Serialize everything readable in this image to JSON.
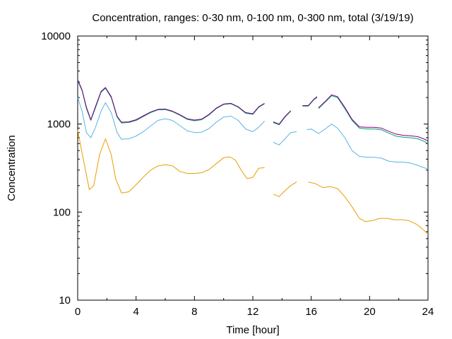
{
  "chart_data": {
    "type": "line",
    "title": "Concentration, ranges: 0-30 nm, 0-100 nm, 0-300 nm, total (3/19/19)",
    "xlabel": "Time [hour]",
    "ylabel": "Concentration",
    "xlim": [
      0,
      24
    ],
    "ylim": [
      10,
      10000
    ],
    "yscale": "log",
    "grid": false,
    "legend": "none",
    "x_ticks": [
      0,
      4,
      8,
      12,
      16,
      20,
      24
    ],
    "x_tick_labels": [
      "0",
      "4",
      "8",
      "12",
      "16",
      "20",
      "24"
    ],
    "y_ticks": [
      10,
      100,
      1000,
      10000
    ],
    "y_tick_labels": [
      "10",
      "100",
      "1000",
      "10000"
    ],
    "series": [
      {
        "color": "#e69f00",
        "segments": [
          [
            [
              0,
              850
            ],
            [
              0.5,
              320
            ],
            [
              0.8,
              180
            ],
            [
              1.1,
              200
            ],
            [
              1.5,
              450
            ],
            [
              1.9,
              680
            ],
            [
              2.3,
              450
            ],
            [
              2.6,
              240
            ],
            [
              3.0,
              165
            ],
            [
              3.5,
              170
            ],
            [
              4.0,
              205
            ],
            [
              4.5,
              250
            ],
            [
              5.0,
              300
            ],
            [
              5.5,
              335
            ],
            [
              6.0,
              345
            ],
            [
              6.5,
              335
            ],
            [
              7.0,
              290
            ],
            [
              7.5,
              275
            ],
            [
              8.0,
              275
            ],
            [
              8.5,
              280
            ],
            [
              9.0,
              305
            ],
            [
              9.5,
              355
            ],
            [
              10.0,
              415
            ],
            [
              10.4,
              425
            ],
            [
              10.8,
              390
            ],
            [
              11.2,
              300
            ],
            [
              11.6,
              240
            ],
            [
              12.0,
              248
            ],
            [
              12.4,
              315
            ],
            [
              12.8,
              320
            ]
          ],
          [
            [
              13.4,
              160
            ],
            [
              13.8,
              150
            ],
            [
              14.2,
              175
            ],
            [
              14.6,
              200
            ],
            [
              15.0,
              220
            ]
          ],
          [
            [
              15.8,
              220
            ],
            [
              16.3,
              210
            ],
            [
              16.8,
              190
            ],
            [
              17.3,
              195
            ],
            [
              17.8,
              185
            ],
            [
              18.3,
              150
            ],
            [
              18.8,
              115
            ],
            [
              19.3,
              85
            ],
            [
              19.7,
              78
            ],
            [
              20.2,
              80
            ],
            [
              20.7,
              85
            ],
            [
              21.2,
              85
            ],
            [
              21.7,
              82
            ],
            [
              22.2,
              82
            ],
            [
              22.7,
              80
            ],
            [
              23.2,
              73
            ],
            [
              23.6,
              65
            ],
            [
              24.0,
              56
            ]
          ]
        ]
      },
      {
        "color": "#56b4e9",
        "segments": [
          [
            [
              0,
              2000
            ],
            [
              0.3,
              1400
            ],
            [
              0.6,
              800
            ],
            [
              0.9,
              700
            ],
            [
              1.2,
              900
            ],
            [
              1.6,
              1400
            ],
            [
              1.9,
              1750
            ],
            [
              2.3,
              1350
            ],
            [
              2.7,
              800
            ],
            [
              3.0,
              670
            ],
            [
              3.5,
              680
            ],
            [
              4.0,
              730
            ],
            [
              4.5,
              820
            ],
            [
              5.0,
              950
            ],
            [
              5.5,
              1100
            ],
            [
              6.0,
              1150
            ],
            [
              6.5,
              1100
            ],
            [
              7.0,
              960
            ],
            [
              7.5,
              840
            ],
            [
              8.0,
              800
            ],
            [
              8.5,
              810
            ],
            [
              9.0,
              890
            ],
            [
              9.5,
              1050
            ],
            [
              10.0,
              1200
            ],
            [
              10.5,
              1230
            ],
            [
              11.0,
              1100
            ],
            [
              11.5,
              880
            ],
            [
              12.0,
              820
            ],
            [
              12.4,
              920
            ],
            [
              12.8,
              1080
            ]
          ],
          [
            [
              13.4,
              620
            ],
            [
              13.8,
              580
            ],
            [
              14.2,
              680
            ],
            [
              14.6,
              800
            ],
            [
              15.0,
              820
            ]
          ],
          [
            [
              15.7,
              860
            ],
            [
              16.0,
              880
            ],
            [
              16.5,
              780
            ],
            [
              17.0,
              890
            ],
            [
              17.4,
              1000
            ],
            [
              17.8,
              900
            ],
            [
              18.3,
              700
            ],
            [
              18.8,
              500
            ],
            [
              19.3,
              430
            ],
            [
              19.8,
              420
            ],
            [
              20.3,
              420
            ],
            [
              20.8,
              410
            ],
            [
              21.3,
              380
            ],
            [
              21.8,
              370
            ],
            [
              22.3,
              370
            ],
            [
              22.8,
              360
            ],
            [
              23.3,
              340
            ],
            [
              23.7,
              320
            ],
            [
              24.0,
              310
            ]
          ]
        ]
      },
      {
        "color": "#009e73",
        "segments": [
          [
            [
              0,
              3100
            ],
            [
              0.3,
              2400
            ],
            [
              0.6,
              1500
            ],
            [
              0.9,
              1100
            ],
            [
              1.2,
              1500
            ],
            [
              1.6,
              2300
            ],
            [
              1.9,
              2550
            ],
            [
              2.3,
              2000
            ],
            [
              2.7,
              1200
            ],
            [
              3.0,
              1030
            ],
            [
              3.5,
              1040
            ],
            [
              4.0,
              1100
            ],
            [
              4.5,
              1220
            ],
            [
              5.0,
              1350
            ],
            [
              5.5,
              1450
            ],
            [
              6.0,
              1460
            ],
            [
              6.5,
              1380
            ],
            [
              7.0,
              1260
            ],
            [
              7.5,
              1130
            ],
            [
              8.0,
              1090
            ],
            [
              8.5,
              1120
            ],
            [
              9.0,
              1270
            ],
            [
              9.5,
              1500
            ],
            [
              10.0,
              1670
            ],
            [
              10.5,
              1700
            ],
            [
              11.0,
              1550
            ],
            [
              11.5,
              1330
            ],
            [
              12.0,
              1290
            ],
            [
              12.4,
              1550
            ],
            [
              12.8,
              1700
            ]
          ],
          [
            [
              13.4,
              1040
            ],
            [
              13.8,
              980
            ],
            [
              14.2,
              1200
            ],
            [
              14.6,
              1400
            ]
          ],
          [
            [
              15.4,
              1600
            ],
            [
              15.8,
              1600
            ],
            [
              16.2,
              1900
            ],
            [
              16.4,
              2000
            ]
          ],
          [
            [
              16.5,
              1500
            ],
            [
              17.0,
              1800
            ],
            [
              17.4,
              2100
            ],
            [
              17.8,
              2000
            ],
            [
              18.3,
              1500
            ],
            [
              18.8,
              1100
            ],
            [
              19.3,
              900
            ],
            [
              19.8,
              880
            ],
            [
              20.3,
              880
            ],
            [
              20.8,
              860
            ],
            [
              21.3,
              790
            ],
            [
              21.8,
              730
            ],
            [
              22.3,
              710
            ],
            [
              22.8,
              700
            ],
            [
              23.3,
              680
            ],
            [
              23.7,
              640
            ],
            [
              24.0,
              600
            ]
          ]
        ]
      },
      {
        "color": "#800080",
        "segments": [
          [
            [
              0,
              3200
            ],
            [
              0.3,
              2450
            ],
            [
              0.6,
              1550
            ],
            [
              0.9,
              1120
            ],
            [
              1.2,
              1550
            ],
            [
              1.6,
              2350
            ],
            [
              1.9,
              2600
            ],
            [
              2.3,
              2050
            ],
            [
              2.7,
              1230
            ],
            [
              3.0,
              1050
            ],
            [
              3.5,
              1060
            ],
            [
              4.0,
              1120
            ],
            [
              4.5,
              1240
            ],
            [
              5.0,
              1370
            ],
            [
              5.5,
              1470
            ],
            [
              6.0,
              1480
            ],
            [
              6.5,
              1400
            ],
            [
              7.0,
              1280
            ],
            [
              7.5,
              1150
            ],
            [
              8.0,
              1110
            ],
            [
              8.5,
              1140
            ],
            [
              9.0,
              1290
            ],
            [
              9.5,
              1520
            ],
            [
              10.0,
              1690
            ],
            [
              10.5,
              1720
            ],
            [
              11.0,
              1570
            ],
            [
              11.5,
              1350
            ],
            [
              12.0,
              1310
            ],
            [
              12.4,
              1570
            ],
            [
              12.8,
              1720
            ]
          ],
          [
            [
              13.4,
              1060
            ],
            [
              13.8,
              1000
            ],
            [
              14.2,
              1220
            ],
            [
              14.6,
              1420
            ]
          ],
          [
            [
              15.4,
              1620
            ],
            [
              15.8,
              1620
            ],
            [
              16.2,
              1930
            ],
            [
              16.4,
              2050
            ]
          ],
          [
            [
              16.5,
              1530
            ],
            [
              17.0,
              1840
            ],
            [
              17.4,
              2150
            ],
            [
              17.8,
              2050
            ],
            [
              18.3,
              1550
            ],
            [
              18.8,
              1130
            ],
            [
              19.3,
              930
            ],
            [
              19.8,
              920
            ],
            [
              20.3,
              920
            ],
            [
              20.8,
              900
            ],
            [
              21.3,
              830
            ],
            [
              21.8,
              770
            ],
            [
              22.3,
              745
            ],
            [
              22.8,
              735
            ],
            [
              23.3,
              720
            ],
            [
              23.7,
              680
            ],
            [
              24.0,
              640
            ]
          ]
        ]
      }
    ]
  }
}
